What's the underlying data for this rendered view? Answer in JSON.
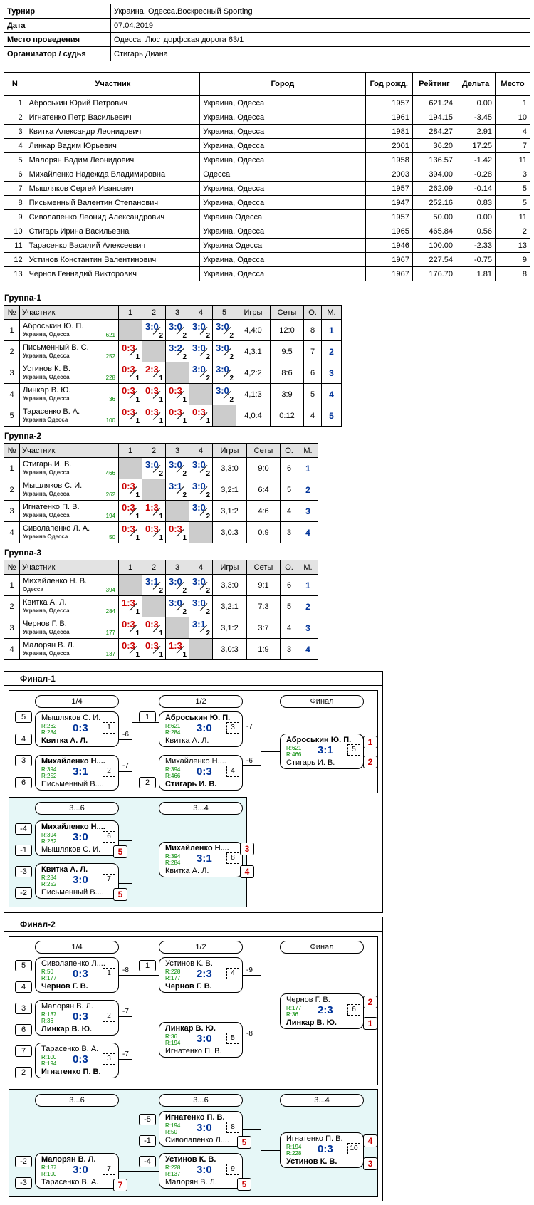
{
  "info": [
    {
      "k": "Турнир",
      "v": "Украина. Одесса.Воскресный  Sporting"
    },
    {
      "k": "Дата",
      "v": "07.04.2019"
    },
    {
      "k": "Место проведения",
      "v": "Одесса. Люстдорфская дорога 63/1"
    },
    {
      "k": "Организатор / судья",
      "v": "Стигарь Диана"
    }
  ],
  "main": {
    "headers": [
      "N",
      "Участник",
      "Город",
      "Год рожд.",
      "Рейтинг",
      "Дельта",
      "Место"
    ],
    "rows": [
      [
        "1",
        "Аброськин Юрий Петрович",
        "Украина, Одесса",
        "1957",
        "621.24",
        "0.00",
        "1"
      ],
      [
        "2",
        "Игнатенко Петр Васильевич",
        "Украина, Одесса",
        "1961",
        "194.15",
        "-3.45",
        "10"
      ],
      [
        "3",
        "Квитка Александр Леонидович",
        "Украина, Одесса",
        "1981",
        "284.27",
        "2.91",
        "4"
      ],
      [
        "4",
        "Линкар Вадим Юрьевич",
        "Украина, Одесса",
        "2001",
        "36.20",
        "17.25",
        "7"
      ],
      [
        "5",
        "Малорян Вадим Леонидович",
        "Украина, Одесса",
        "1958",
        "136.57",
        "-1.42",
        "11"
      ],
      [
        "6",
        "Михайленко Надежда Владимировна",
        "Одесса",
        "2003",
        "394.00",
        "-0.28",
        "3"
      ],
      [
        "7",
        "Мышляков Сергей Иванович",
        "Украина, Одесса",
        "1957",
        "262.09",
        "-0.14",
        "5"
      ],
      [
        "8",
        "Письменный Валентин Степанович",
        "Украина, Одесса",
        "1947",
        "252.16",
        "0.83",
        "5"
      ],
      [
        "9",
        "Сиволапенко Леонид Александрович",
        "Украина Одесса",
        "1957",
        "50.00",
        "0.00",
        "11"
      ],
      [
        "10",
        "Стигарь Ирина Васильевна",
        "Украина, Одесса",
        "1965",
        "465.84",
        "0.56",
        "2"
      ],
      [
        "11",
        "Тарасенко Василий Алексеевич",
        "Украина Одесса",
        "1946",
        "100.00",
        "-2.33",
        "13"
      ],
      [
        "12",
        "Устинов Константин Валентинович",
        "Украина, Одесса",
        "1967",
        "227.54",
        "-0.75",
        "9"
      ],
      [
        "13",
        "Чернов Геннадий Викторович",
        "Украина, Одесса",
        "1967",
        "176.70",
        "1.81",
        "8"
      ]
    ]
  },
  "group_headers": {
    "no": "№",
    "player": "Участник",
    "games": "Игры",
    "sets": "Сеты",
    "points": "О.",
    "place": "М."
  },
  "groups": [
    {
      "title": "Группа-1",
      "cols": [
        "1",
        "2",
        "3",
        "4",
        "5"
      ],
      "rows": [
        {
          "n": "1",
          "name": "Аброськин Ю. П.",
          "city": "Украина, Одесса",
          "rating": "621",
          "cells": [
            null,
            [
              "3:0",
              "2",
              "w"
            ],
            [
              "3:0",
              "2",
              "w"
            ],
            [
              "3:0",
              "2",
              "w"
            ],
            [
              "3:0",
              "2",
              "w"
            ]
          ],
          "games": "4,4:0",
          "sets": "12:0",
          "pts": "8",
          "place": "1"
        },
        {
          "n": "2",
          "name": "Письменный В. С.",
          "city": "Украина, Одесса",
          "rating": "252",
          "cells": [
            [
              "0:3",
              "1",
              "l"
            ],
            null,
            [
              "3:2",
              "2",
              "w"
            ],
            [
              "3:0",
              "2",
              "w"
            ],
            [
              "3:0",
              "2",
              "w"
            ]
          ],
          "games": "4,3:1",
          "sets": "9:5",
          "pts": "7",
          "place": "2"
        },
        {
          "n": "3",
          "name": "Устинов К. В.",
          "city": "Украина, Одесса",
          "rating": "228",
          "cells": [
            [
              "0:3",
              "1",
              "l"
            ],
            [
              "2:3",
              "1",
              "l"
            ],
            null,
            [
              "3:0",
              "2",
              "w"
            ],
            [
              "3:0",
              "2",
              "w"
            ]
          ],
          "games": "4,2:2",
          "sets": "8:6",
          "pts": "6",
          "place": "3"
        },
        {
          "n": "4",
          "name": "Линкар В. Ю.",
          "city": "Украина, Одесса",
          "rating": "36",
          "cells": [
            [
              "0:3",
              "1",
              "l"
            ],
            [
              "0:3",
              "1",
              "l"
            ],
            [
              "0:3",
              "1",
              "l"
            ],
            null,
            [
              "3:0",
              "2",
              "w"
            ]
          ],
          "games": "4,1:3",
          "sets": "3:9",
          "pts": "5",
          "place": "4"
        },
        {
          "n": "5",
          "name": "Тарасенко В. А.",
          "city": "Украина Одесса",
          "rating": "100",
          "cells": [
            [
              "0:3",
              "1",
              "l"
            ],
            [
              "0:3",
              "1",
              "l"
            ],
            [
              "0:3",
              "1",
              "l"
            ],
            [
              "0:3",
              "1",
              "l"
            ],
            null
          ],
          "games": "4,0:4",
          "sets": "0:12",
          "pts": "4",
          "place": "5"
        }
      ]
    },
    {
      "title": "Группа-2",
      "cols": [
        "1",
        "2",
        "3",
        "4"
      ],
      "rows": [
        {
          "n": "1",
          "name": "Стигарь И. В.",
          "city": "Украина, Одесса",
          "rating": "466",
          "cells": [
            null,
            [
              "3:0",
              "2",
              "w"
            ],
            [
              "3:0",
              "2",
              "w"
            ],
            [
              "3:0",
              "2",
              "w"
            ]
          ],
          "games": "3,3:0",
          "sets": "9:0",
          "pts": "6",
          "place": "1"
        },
        {
          "n": "2",
          "name": "Мышляков С. И.",
          "city": "Украина, Одесса",
          "rating": "262",
          "cells": [
            [
              "0:3",
              "1",
              "l"
            ],
            null,
            [
              "3:1",
              "2",
              "w"
            ],
            [
              "3:0",
              "2",
              "w"
            ]
          ],
          "games": "3,2:1",
          "sets": "6:4",
          "pts": "5",
          "place": "2"
        },
        {
          "n": "3",
          "name": "Игнатенко П. В.",
          "city": "Украина, Одесса",
          "rating": "194",
          "cells": [
            [
              "0:3",
              "1",
              "l"
            ],
            [
              "1:3",
              "1",
              "l"
            ],
            null,
            [
              "3:0",
              "2",
              "w"
            ]
          ],
          "games": "3,1:2",
          "sets": "4:6",
          "pts": "4",
          "place": "3"
        },
        {
          "n": "4",
          "name": "Сиволапенко Л. А.",
          "city": "Украина Одесса",
          "rating": "50",
          "cells": [
            [
              "0:3",
              "1",
              "l"
            ],
            [
              "0:3",
              "1",
              "l"
            ],
            [
              "0:3",
              "1",
              "l"
            ],
            null
          ],
          "games": "3,0:3",
          "sets": "0:9",
          "pts": "3",
          "place": "4"
        }
      ]
    },
    {
      "title": "Группа-3",
      "cols": [
        "1",
        "2",
        "3",
        "4"
      ],
      "rows": [
        {
          "n": "1",
          "name": "Михайленко Н. В.",
          "city": "Одесса",
          "rating": "394",
          "cells": [
            null,
            [
              "3:1",
              "2",
              "w"
            ],
            [
              "3:0",
              "2",
              "w"
            ],
            [
              "3:0",
              "2",
              "w"
            ]
          ],
          "games": "3,3:0",
          "sets": "9:1",
          "pts": "6",
          "place": "1"
        },
        {
          "n": "2",
          "name": "Квитка А. Л.",
          "city": "Украина, Одесса",
          "rating": "284",
          "cells": [
            [
              "1:3",
              "1",
              "l"
            ],
            null,
            [
              "3:0",
              "2",
              "w"
            ],
            [
              "3:0",
              "2",
              "w"
            ]
          ],
          "games": "3,2:1",
          "sets": "7:3",
          "pts": "5",
          "place": "2"
        },
        {
          "n": "3",
          "name": "Чернов Г. В.",
          "city": "Украина, Одесса",
          "rating": "177",
          "cells": [
            [
              "0:3",
              "1",
              "l"
            ],
            [
              "0:3",
              "1",
              "l"
            ],
            null,
            [
              "3:1",
              "2",
              "w"
            ]
          ],
          "games": "3,1:2",
          "sets": "3:7",
          "pts": "4",
          "place": "3"
        },
        {
          "n": "4",
          "name": "Малорян В. Л.",
          "city": "Украина, Одесса",
          "rating": "137",
          "cells": [
            [
              "0:3",
              "1",
              "l"
            ],
            [
              "0:3",
              "1",
              "l"
            ],
            [
              "1:3",
              "1",
              "l"
            ],
            null
          ],
          "games": "3,0:3",
          "sets": "1:9",
          "pts": "3",
          "place": "4"
        }
      ]
    }
  ],
  "finals": [
    {
      "title": "Финал-1",
      "rounds": [
        "1/4",
        "1/2",
        "Финал",
        "3...6",
        "3...4"
      ],
      "matches": [
        {
          "p1": "Мышляков С. И.",
          "r1": "R:262",
          "p2": "Квитка А. Л.",
          "r2": "R:284",
          "score": "0:3",
          "num": "1",
          "w": 2,
          "s1": "5",
          "s2": "4",
          "loss": "-6"
        },
        {
          "p1": "Михайленко Н....",
          "r1": "R:394",
          "p2": "Письменный В....",
          "r2": "R:252",
          "score": "3:1",
          "num": "2",
          "w": 1,
          "s1": "3",
          "s2": "6",
          "loss": "-7"
        },
        {
          "p1": "Аброськин Ю. П.",
          "r1": "R:621",
          "p2": "Квитка А. Л.",
          "r2": "R:284",
          "score": "3:0",
          "num": "3",
          "w": 1,
          "s1": "1",
          "loss": "-7"
        },
        {
          "p1": "Михайленко Н....",
          "r1": "R:394",
          "p2": "Стигарь И. В.",
          "r2": "R:466",
          "score": "0:3",
          "num": "4",
          "w": 2,
          "s2": "2",
          "loss": "-6"
        },
        {
          "p1": "Аброськин Ю. П.",
          "r1": "R:621",
          "p2": "Стигарь И. В.",
          "r2": "R:466",
          "score": "3:1",
          "num": "5",
          "w": 1,
          "pl1": "1",
          "pl2": "2"
        },
        {
          "p1": "Михайленко Н....",
          "r1": "R:394",
          "p2": "Мышляков С. И.",
          "r2": "R:262",
          "score": "3:0",
          "num": "6",
          "w": 1,
          "s1": "-4",
          "s2": "-1",
          "pl": "5"
        },
        {
          "p1": "Квитка А. Л.",
          "r1": "R:284",
          "p2": "Письменный В....",
          "r2": "R:252",
          "score": "3:0",
          "num": "7",
          "w": 1,
          "s1": "-3",
          "s2": "-2",
          "pl": "5"
        },
        {
          "p1": "Михайленко Н....",
          "r1": "R:394",
          "p2": "Квитка А. Л.",
          "r2": "R:284",
          "score": "3:1",
          "num": "8",
          "w": 1,
          "pl1": "3",
          "pl2": "4"
        }
      ]
    },
    {
      "title": "Финал-2",
      "rounds": [
        "1/4",
        "1/2",
        "Финал",
        "3...6",
        "3...6",
        "3...4"
      ],
      "matches": [
        {
          "p1": "Сиволапенко Л....",
          "r1": "R:50",
          "p2": "Чернов Г. В.",
          "r2": "R:177",
          "score": "0:3",
          "num": "1",
          "w": 2,
          "s1": "5",
          "s2": "4",
          "loss": "-8"
        },
        {
          "p1": "Малорян В. Л.",
          "r1": "R:137",
          "p2": "Линкар В. Ю.",
          "r2": "R:36",
          "score": "0:3",
          "num": "2",
          "w": 2,
          "s1": "3",
          "s2": "6",
          "loss": "-7"
        },
        {
          "p1": "Тарасенко В. А.",
          "r1": "R:100",
          "p2": "Игнатенко П. В.",
          "r2": "R:194",
          "score": "0:3",
          "num": "3",
          "w": 2,
          "s1": "7",
          "s2": "2",
          "loss": "-7"
        },
        {
          "p1": "Устинов К. В.",
          "r1": "R:228",
          "p2": "Чернов Г. В.",
          "r2": "R:177",
          "score": "2:3",
          "num": "4",
          "w": 2,
          "s1": "1",
          "loss": "-9"
        },
        {
          "p1": "Линкар В. Ю.",
          "r1": "R:36",
          "p2": "Игнатенко П. В.",
          "r2": "R:194",
          "score": "3:0",
          "num": "5",
          "w": 1,
          "loss": "-8"
        },
        {
          "p1": "Чернов Г. В.",
          "r1": "R:177",
          "p2": "Линкар В. Ю.",
          "r2": "R:36",
          "score": "2:3",
          "num": "6",
          "w": 2,
          "pl1": "2",
          "pl2": "1"
        },
        {
          "p1": "Малорян В. Л.",
          "r1": "R:137",
          "p2": "Тарасенко В. А.",
          "r2": "R:100",
          "score": "3:0",
          "num": "7",
          "w": 1,
          "s1": "-2",
          "s2": "-3",
          "pl": "7"
        },
        {
          "p1": "Игнатенко П. В.",
          "r1": "R:194",
          "p2": "Сиволапенко Л....",
          "r2": "R:50",
          "score": "3:0",
          "num": "8",
          "w": 1,
          "s1": "-5",
          "s2": "-1",
          "pl": "5"
        },
        {
          "p1": "Устинов К. В.",
          "r1": "R:228",
          "p2": "Малорян В. Л.",
          "r2": "R:137",
          "score": "3:0",
          "num": "9",
          "w": 1,
          "s1": "-4",
          "pl": "5"
        },
        {
          "p1": "Игнатенко П. В.",
          "r1": "R:194",
          "p2": "Устинов К. В.",
          "r2": "R:228",
          "score": "0:3",
          "num": "10",
          "w": 2,
          "pl1": "4",
          "pl2": "3"
        }
      ]
    }
  ]
}
